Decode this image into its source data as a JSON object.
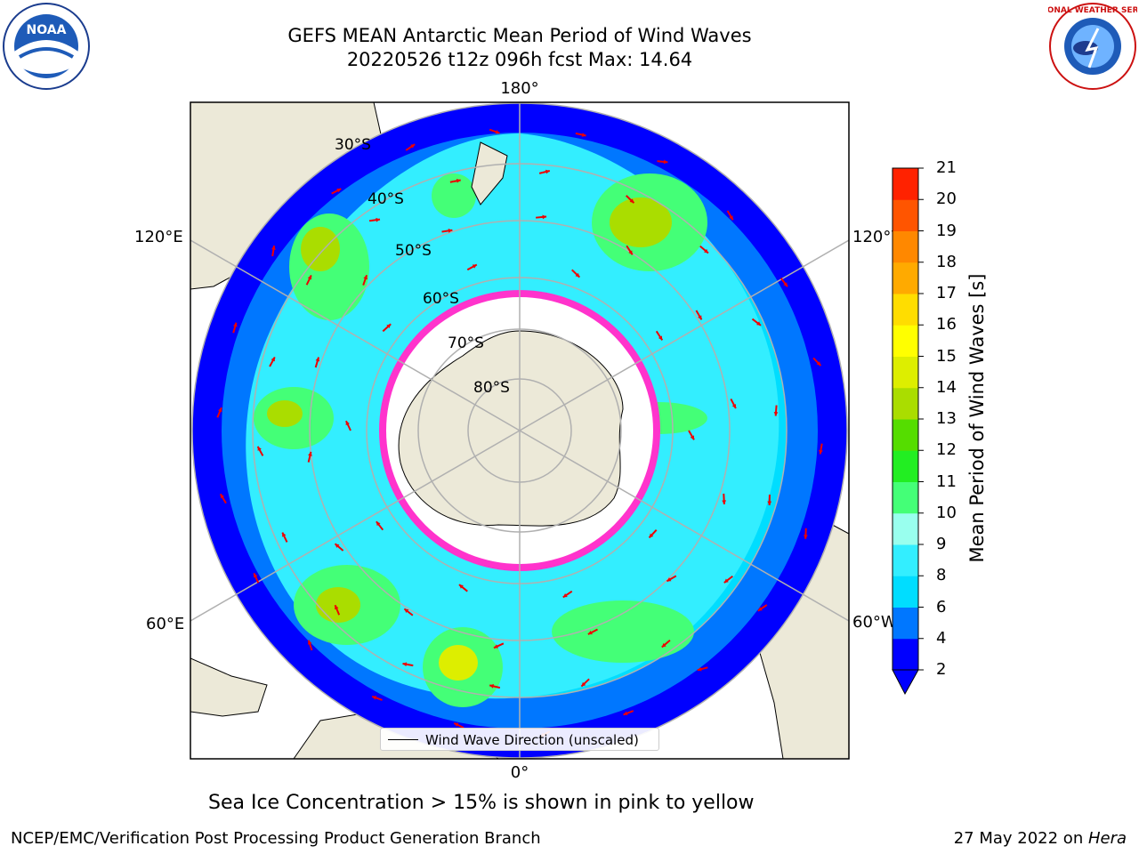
{
  "title": {
    "line1": "GEFS MEAN Antarctic Mean Period of Wind Waves",
    "line2": "20220526 t12z 096h fcst   Max: 14.64"
  },
  "logos": {
    "noaa_text": "NOAA",
    "nws_text": "NATIONAL WEATHER SERVICE"
  },
  "map": {
    "longitude_labels": {
      "top": "180°",
      "bottom": "0°",
      "upper_left": "120°E",
      "upper_right": "120°W",
      "lower_left": "60°E",
      "lower_right": "60°W"
    },
    "latitude_labels": [
      "30°S",
      "40°S",
      "50°S",
      "60°S",
      "70°S",
      "80°S"
    ],
    "legend_label": "Wind Wave Direction (unscaled)",
    "colors": {
      "land": "#ece9d8",
      "ice": "#ffffff",
      "ice_edge": "#ff33cc"
    }
  },
  "colorbar": {
    "label": "Mean Period of Wind Waves [s]",
    "ticks": [
      "2",
      "4",
      "6",
      "8",
      "9",
      "10",
      "11",
      "12",
      "13",
      "14",
      "15",
      "16",
      "17",
      "18",
      "19",
      "20",
      "21"
    ],
    "colors": [
      "#0000ff",
      "#0077ff",
      "#00ddff",
      "#33eeff",
      "#99ffee",
      "#44ff77",
      "#22ee22",
      "#55dd00",
      "#aadd00",
      "#ddee00",
      "#ffff00",
      "#ffdd00",
      "#ffaa00",
      "#ff8800",
      "#ff5500",
      "#ff2200",
      "#ff0000"
    ]
  },
  "caption": "Sea Ice Concentration > 15% is shown in pink to yellow",
  "footer": {
    "left": "NCEP/EMC/Verification Post Processing Product Generation Branch",
    "date": "27 May 2022 on ",
    "machine": "Hera"
  }
}
